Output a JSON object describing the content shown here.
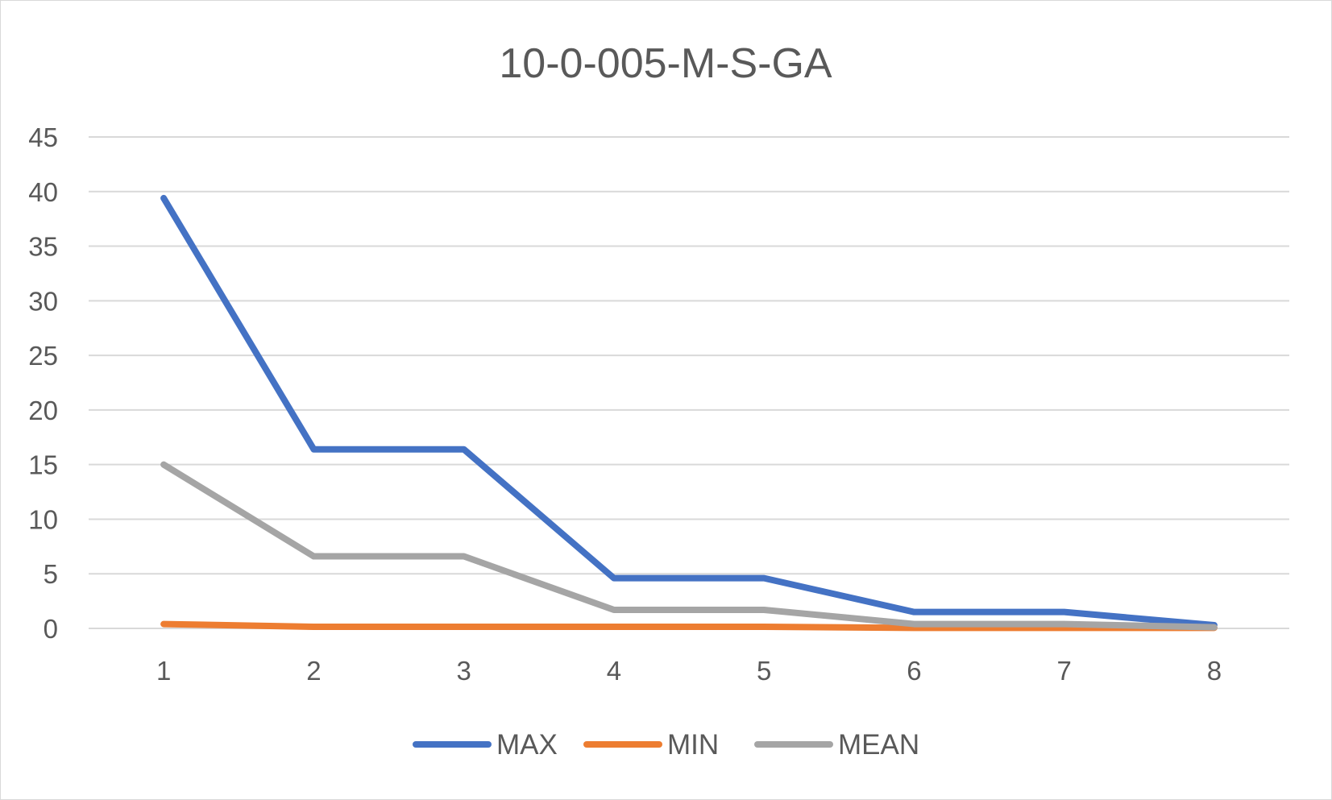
{
  "chart_data": {
    "type": "line",
    "title": "10-0-005-M-S-GA",
    "xlabel": "",
    "ylabel": "",
    "categories": [
      "1",
      "2",
      "3",
      "4",
      "5",
      "6",
      "7",
      "8"
    ],
    "ylim": [
      0,
      45
    ],
    "yticks": [
      "0",
      "5",
      "10",
      "15",
      "20",
      "25",
      "30",
      "35",
      "40",
      "45"
    ],
    "grid": true,
    "legend_position": "bottom",
    "series": [
      {
        "name": "MAX",
        "color": "#4472C4",
        "values": [
          39.4,
          16.4,
          16.4,
          4.6,
          4.6,
          1.5,
          1.5,
          0.3
        ]
      },
      {
        "name": "MIN",
        "color": "#ED7D31",
        "values": [
          0.4,
          0.15,
          0.15,
          0.15,
          0.15,
          0.05,
          0.05,
          0.05
        ]
      },
      {
        "name": "MEAN",
        "color": "#A5A5A5",
        "values": [
          15.0,
          6.6,
          6.6,
          1.7,
          1.7,
          0.4,
          0.4,
          0.1
        ]
      }
    ]
  }
}
